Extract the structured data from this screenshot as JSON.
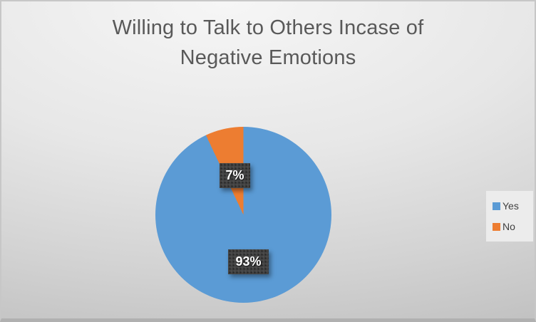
{
  "slide": {
    "background_top": "#f6f6f6",
    "background_bottom": "#bfbfbf",
    "edge_color": "#c7c7c7"
  },
  "chart_data": {
    "type": "pie",
    "title": "Willing to Talk to Others Incase of Negative Emotions",
    "title_lines": [
      "Willing to Talk to Others Incase of",
      "Negative Emotions"
    ],
    "categories": [
      "Yes",
      "No"
    ],
    "values": [
      93,
      7
    ],
    "value_unit": "percent",
    "colors": [
      "#5b9bd5",
      "#ed7d31"
    ],
    "data_labels": [
      "93%",
      "7%"
    ],
    "start_angle_deg": 0,
    "direction": "clockwise",
    "legend_position": "right",
    "grid": false
  },
  "legend": {
    "items": [
      {
        "label": "Yes",
        "color": "#5b9bd5"
      },
      {
        "label": "No",
        "color": "#ed7d31"
      }
    ]
  },
  "styles": {
    "title_color": "#595959",
    "label_box_bg": "#424242",
    "label_text_color": "#ffffff",
    "legend_bg": "#ececec",
    "legend_text_color": "#404040"
  }
}
